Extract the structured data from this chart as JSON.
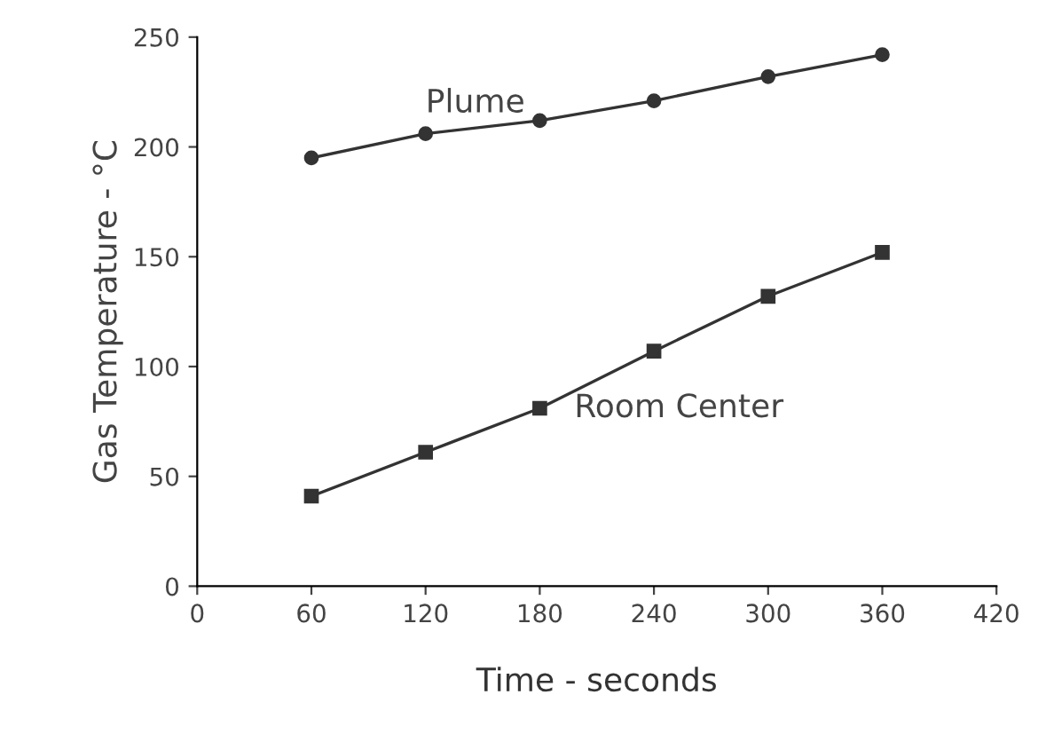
{
  "chart_data": {
    "type": "line",
    "xlabel": "Time - seconds",
    "ylabel": "Gas Temperature - °C",
    "x": [
      60,
      120,
      180,
      240,
      300,
      360
    ],
    "series": [
      {
        "name": "Plume",
        "color": "#333333",
        "marker": "circle",
        "values": [
          195,
          206,
          212,
          221,
          232,
          242
        ]
      },
      {
        "name": "Room Center",
        "color": "#333333",
        "marker": "square",
        "values": [
          41,
          61,
          81,
          107,
          132,
          152
        ]
      }
    ],
    "xlim": [
      0,
      420
    ],
    "xticks": [
      0,
      60,
      120,
      180,
      240,
      300,
      360,
      420
    ],
    "ylim": [
      0,
      250
    ],
    "yticks": [
      0,
      50,
      100,
      150,
      200,
      250
    ],
    "grid": false,
    "legend": false,
    "line_style": "solid"
  }
}
